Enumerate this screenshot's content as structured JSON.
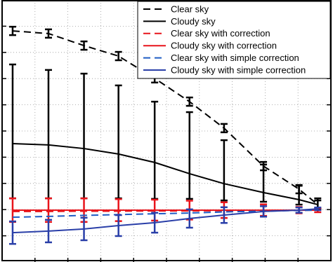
{
  "chart_data": {
    "type": "line",
    "x": [
      0.32,
      1.41,
      2.49,
      3.54,
      4.64,
      5.7,
      6.75,
      7.95,
      9.03,
      9.6
    ],
    "xlim": [
      0,
      10
    ],
    "xticks": [
      1,
      2,
      3,
      4,
      5,
      6,
      7,
      8,
      9
    ],
    "ylim": [
      0,
      10
    ],
    "yticks": [
      1,
      2,
      3,
      4,
      5,
      6,
      7,
      8,
      9
    ],
    "grid": true,
    "legend": "upper right",
    "series": [
      {
        "name": "Clear sky",
        "color": "#000000",
        "dash": true,
        "values": [
          8.82,
          8.72,
          8.26,
          7.86,
          7.01,
          6.12,
          5.11,
          3.66,
          2.78,
          2.19
        ],
        "error": [
          0.16,
          0.16,
          0.16,
          0.16,
          0.16,
          0.16,
          0.16,
          0.16,
          0.16,
          0.16
        ]
      },
      {
        "name": "Cloudy sky",
        "color": "#000000",
        "dash": false,
        "values": [
          4.52,
          4.47,
          4.33,
          4.12,
          3.8,
          3.37,
          2.99,
          2.65,
          2.38,
          2.19
        ],
        "lower": [
          2.43,
          2.43,
          2.43,
          2.43,
          2.41,
          2.41,
          2.35,
          2.3,
          2.19,
          2.0
        ],
        "upper": [
          7.54,
          7.33,
          7.19,
          6.74,
          6.12,
          5.72,
          4.65,
          3.72,
          2.91,
          2.43
        ]
      },
      {
        "name": "Clear sky with correction",
        "color": "#e8141b",
        "dash": true,
        "values": [
          1.93,
          1.93,
          1.94,
          1.94,
          1.95,
          1.95,
          1.96,
          1.97,
          1.97,
          1.98
        ]
      },
      {
        "name": "Cloudy sky with correction",
        "color": "#e8141b",
        "dash": false,
        "values": [
          1.98,
          1.98,
          1.98,
          1.98,
          1.98,
          1.98,
          1.98,
          1.98,
          1.98,
          1.98
        ],
        "error": [
          0.45,
          0.45,
          0.45,
          0.42,
          0.4,
          0.36,
          0.3,
          0.22,
          0.12,
          0.08
        ]
      },
      {
        "name": "Clear sky with simple correction",
        "color": "#1f5cc4",
        "dash": true,
        "values": [
          1.71,
          1.74,
          1.78,
          1.81,
          1.84,
          1.87,
          1.91,
          1.94,
          1.97,
          1.98
        ]
      },
      {
        "name": "Cloudy sky with simple correction",
        "color": "#2a3fa8",
        "dash": false,
        "values": [
          1.12,
          1.18,
          1.26,
          1.39,
          1.5,
          1.66,
          1.79,
          1.93,
          1.98,
          2.03
        ],
        "error": [
          0.43,
          0.43,
          0.43,
          0.4,
          0.38,
          0.35,
          0.3,
          0.2,
          0.1,
          0.05
        ]
      }
    ]
  }
}
